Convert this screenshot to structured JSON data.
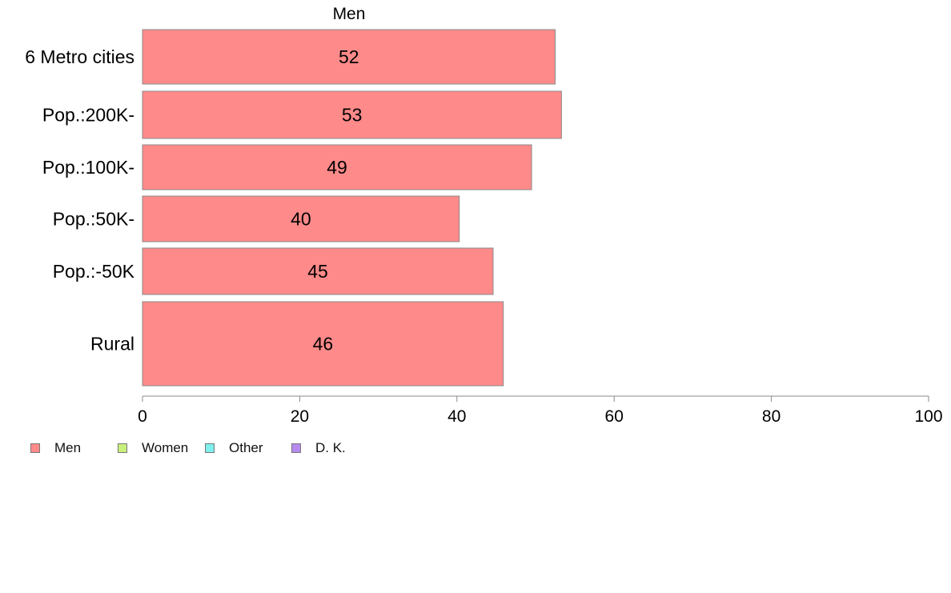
{
  "chart_data": {
    "type": "bar",
    "orientation": "horizontal",
    "title": "Men",
    "categories": [
      "6 Metro cities",
      "Pop.:200K-",
      "Pop.:100K-",
      "Pop.:50K-",
      "Pop.:-50K",
      "Rural"
    ],
    "series": [
      {
        "name": "Men",
        "values": [
          52.5,
          53.3,
          49.5,
          40.3,
          44.6,
          45.9
        ],
        "labels": [
          "52",
          "53",
          "49",
          "40",
          "45",
          "46"
        ]
      }
    ],
    "xlim": [
      0,
      100
    ],
    "xticks": [
      0,
      20,
      40,
      60,
      80,
      100
    ],
    "xlabel": "",
    "ylabel": "",
    "grid": false,
    "legend_position": "bottom-left",
    "colors": {
      "bar_fill": "#ff8a8a",
      "bar_stroke": "#8a8a8a",
      "axis": "#8a8a8a"
    }
  },
  "legend": [
    {
      "label": "Men",
      "color": "#ff8a8a"
    },
    {
      "label": "Women",
      "color": "#c8f07a"
    },
    {
      "label": "Other",
      "color": "#7ef0ee"
    },
    {
      "label": "D. K.",
      "color": "#b88af0"
    }
  ]
}
